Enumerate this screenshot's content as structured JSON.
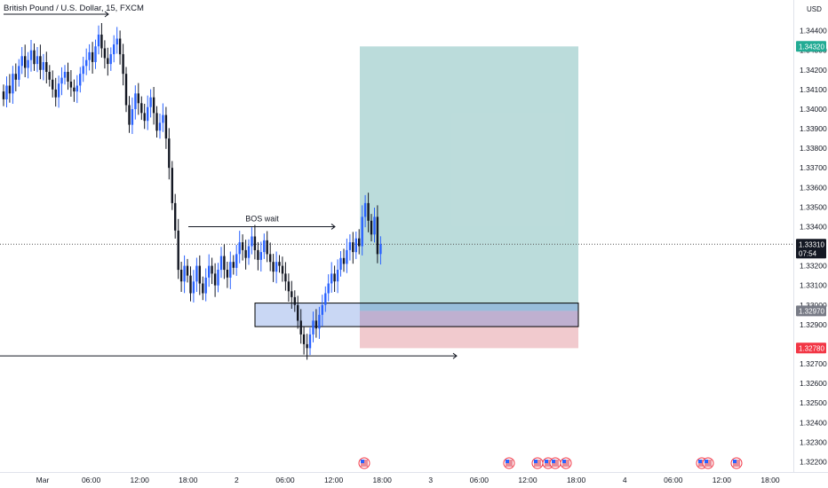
{
  "symbol": {
    "title": "British Pound / U.S. Dollar, 15, FXCM"
  },
  "currency": "USD",
  "current_price": {
    "value": "1.33310",
    "countdown": "07:54"
  },
  "chart_data": {
    "type": "candlestick",
    "title": "British Pound / U.S. Dollar, 15, FXCM",
    "price_range": [
      1.3215,
      1.3445
    ],
    "price_ticks": [
      "1.34400",
      "1.34300",
      "1.34200",
      "1.34100",
      "1.34000",
      "1.33900",
      "1.33800",
      "1.33700",
      "1.33600",
      "1.33500",
      "1.33400",
      "1.33200",
      "1.33100",
      "1.33000",
      "1.32900",
      "1.32700",
      "1.32600",
      "1.32500",
      "1.32400",
      "1.32300",
      "1.32200"
    ],
    "time_ticks": [
      "Mar",
      "06:00",
      "12:00",
      "18:00",
      "2",
      "06:00",
      "12:00",
      "18:00",
      "3",
      "06:00",
      "12:00",
      "18:00",
      "4",
      "06:00",
      "12:00",
      "18:00"
    ],
    "badges": [
      {
        "value": "1.34320",
        "color": "#22ab94"
      },
      {
        "value": "1.32970",
        "color": "#787b86"
      },
      {
        "value": "1.32780",
        "color": "#f23645"
      }
    ],
    "annotations": [
      {
        "type": "arrow",
        "label": "BOS wait",
        "price": 1.334
      },
      {
        "type": "arrow",
        "label": "",
        "price": 1.3274
      },
      {
        "type": "rectangle",
        "price_top": 1.3301,
        "price_bottom": 1.3289
      }
    ],
    "position": {
      "entry": 1.3297,
      "target": 1.3432,
      "stop": 1.3278
    },
    "closes": [
      1.3405,
      1.3412,
      1.3408,
      1.3418,
      1.3415,
      1.3422,
      1.3427,
      1.3421,
      1.3425,
      1.343,
      1.3423,
      1.3427,
      1.342,
      1.3424,
      1.3419,
      1.3415,
      1.341,
      1.3406,
      1.3413,
      1.3416,
      1.3419,
      1.3414,
      1.3411,
      1.3409,
      1.3412,
      1.3418,
      1.3422,
      1.3425,
      1.3429,
      1.3424,
      1.3432,
      1.3438,
      1.3431,
      1.3426,
      1.3423,
      1.3428,
      1.3433,
      1.3436,
      1.3428,
      1.3418,
      1.3402,
      1.3392,
      1.34,
      1.3408,
      1.3403,
      1.3398,
      1.3394,
      1.3401,
      1.3406,
      1.3398,
      1.3389,
      1.3393,
      1.3397,
      1.3385,
      1.337,
      1.3352,
      1.3338,
      1.3318,
      1.3312,
      1.332,
      1.3315,
      1.3306,
      1.3312,
      1.332,
      1.3311,
      1.3306,
      1.3314,
      1.332,
      1.3316,
      1.331,
      1.3318,
      1.3325,
      1.3318,
      1.3314,
      1.3322,
      1.3319,
      1.3326,
      1.3332,
      1.3328,
      1.3324,
      1.333,
      1.3335,
      1.3328,
      1.3323,
      1.3327,
      1.3333,
      1.3326,
      1.3322,
      1.3317,
      1.3322,
      1.332,
      1.3316,
      1.3312,
      1.3307,
      1.3304,
      1.33,
      1.3292,
      1.3285,
      1.328,
      1.3278,
      1.3285,
      1.3292,
      1.3288,
      1.3295,
      1.33,
      1.3306,
      1.3311,
      1.3316,
      1.3312,
      1.3318,
      1.3324,
      1.3321,
      1.3328,
      1.3332,
      1.3327,
      1.3334,
      1.333,
      1.3345,
      1.3352,
      1.3343,
      1.3336,
      1.3345,
      1.3326,
      1.3331
    ]
  }
}
